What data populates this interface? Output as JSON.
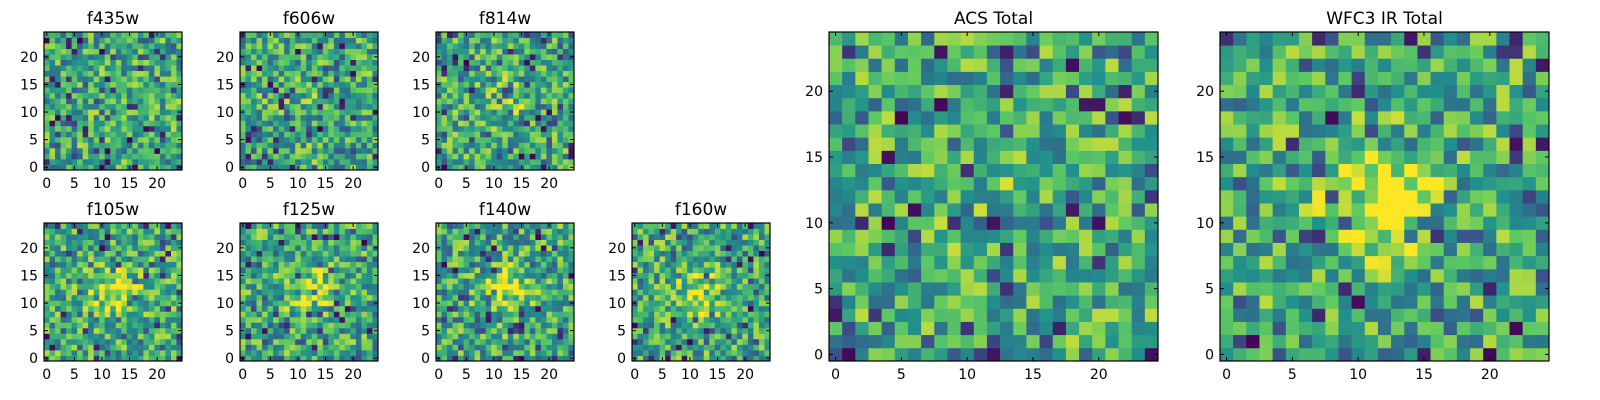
{
  "chart_data": [
    {
      "type": "heatmap",
      "title": "f435w",
      "size": 25,
      "seed": 11,
      "center_boost": 0.0,
      "xticks": [
        "0",
        "5",
        "10",
        "15",
        "20"
      ],
      "yticks": [
        "0",
        "5",
        "10",
        "15",
        "20"
      ],
      "xlim": [
        0,
        24
      ],
      "ylim": [
        0,
        24
      ]
    },
    {
      "type": "heatmap",
      "title": "f606w",
      "size": 25,
      "seed": 23,
      "center_boost": 0.05,
      "xticks": [
        "0",
        "5",
        "10",
        "15",
        "20"
      ],
      "yticks": [
        "0",
        "5",
        "10",
        "15",
        "20"
      ],
      "xlim": [
        0,
        24
      ],
      "ylim": [
        0,
        24
      ]
    },
    {
      "type": "heatmap",
      "title": "f814w",
      "size": 25,
      "seed": 37,
      "center_boost": 0.15,
      "xticks": [
        "0",
        "5",
        "10",
        "15",
        "20"
      ],
      "yticks": [
        "0",
        "5",
        "10",
        "15",
        "20"
      ],
      "xlim": [
        0,
        24
      ],
      "ylim": [
        0,
        24
      ]
    },
    {
      "type": "heatmap",
      "title": "f105w",
      "size": 25,
      "seed": 41,
      "center_boost": 0.3,
      "xticks": [
        "0",
        "5",
        "10",
        "15",
        "20"
      ],
      "yticks": [
        "0",
        "5",
        "10",
        "15",
        "20"
      ],
      "xlim": [
        0,
        24
      ],
      "ylim": [
        0,
        24
      ]
    },
    {
      "type": "heatmap",
      "title": "f125w",
      "size": 25,
      "seed": 53,
      "center_boost": 0.3,
      "xticks": [
        "0",
        "5",
        "10",
        "15",
        "20"
      ],
      "yticks": [
        "0",
        "5",
        "10",
        "15",
        "20"
      ],
      "xlim": [
        0,
        24
      ],
      "ylim": [
        0,
        24
      ]
    },
    {
      "type": "heatmap",
      "title": "f140w",
      "size": 25,
      "seed": 67,
      "center_boost": 0.35,
      "xticks": [
        "0",
        "5",
        "10",
        "15",
        "20"
      ],
      "yticks": [
        "0",
        "5",
        "10",
        "15",
        "20"
      ],
      "xlim": [
        0,
        24
      ],
      "ylim": [
        0,
        24
      ]
    },
    {
      "type": "heatmap",
      "title": "f160w",
      "size": 25,
      "seed": 79,
      "center_boost": 0.3,
      "xticks": [
        "0",
        "5",
        "10",
        "15",
        "20"
      ],
      "yticks": [
        "0",
        "5",
        "10",
        "15",
        "20"
      ],
      "xlim": [
        0,
        24
      ],
      "ylim": [
        0,
        24
      ]
    },
    {
      "type": "heatmap",
      "title": "ACS Total",
      "size": 25,
      "seed": 97,
      "center_boost": 0.05,
      "xticks": [
        "0",
        "5",
        "10",
        "15",
        "20"
      ],
      "yticks": [
        "0",
        "5",
        "10",
        "15",
        "20"
      ],
      "xlim": [
        0,
        24
      ],
      "ylim": [
        0,
        24
      ]
    },
    {
      "type": "heatmap",
      "title": "WFC3 IR Total",
      "size": 25,
      "seed": 131,
      "center_boost": 0.45,
      "xticks": [
        "0",
        "5",
        "10",
        "15",
        "20"
      ],
      "yticks": [
        "0",
        "5",
        "10",
        "15",
        "20"
      ],
      "xlim": [
        0,
        24
      ],
      "ylim": [
        0,
        24
      ]
    }
  ],
  "colormap": [
    "#440154",
    "#3b528b",
    "#21918c",
    "#5ec962",
    "#fde725"
  ]
}
